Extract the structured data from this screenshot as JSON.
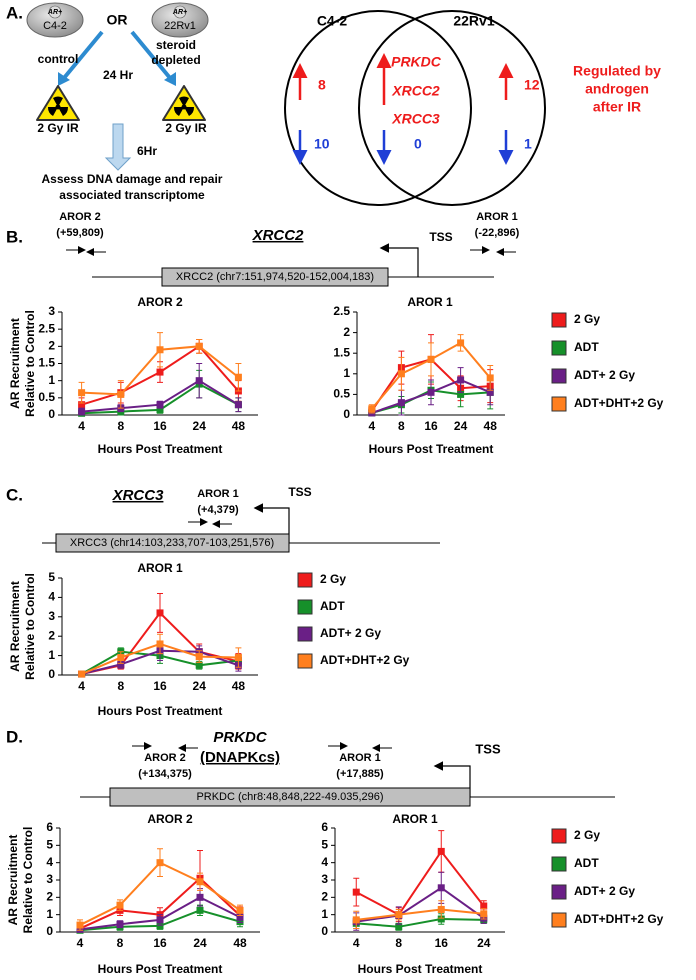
{
  "panel_labels": [
    "A.",
    "B.",
    "C.",
    "D."
  ],
  "panel_a": {
    "cell_lines": [
      {
        "badge": "AR+",
        "name": "C4-2"
      },
      {
        "badge": "AR+",
        "name": "22Rv1"
      }
    ],
    "or": "OR",
    "control": "control",
    "steroid_depleted": [
      "steroid",
      "depleted"
    ],
    "time1": "24 Hr",
    "treatments": [
      "2 Gy IR",
      "2 Gy IR"
    ],
    "time2": "6Hr",
    "assay": [
      "Assess DNA damage and repair",
      "associated transcriptome"
    ],
    "venn": {
      "sets": [
        "C4-2",
        "22Rv1"
      ],
      "c42_up": 8,
      "c42_down": 10,
      "shared_genes": [
        "PRKDC",
        "XRCC2",
        "XRCC3"
      ],
      "shared_down": 0,
      "rv1_up": 12,
      "rv1_down": 1,
      "note": [
        "Regulated by",
        "androgen",
        "after IR"
      ]
    }
  },
  "panel_b": {
    "gene": "XRCC2",
    "regions": [
      {
        "name": "AROR 2",
        "position": "(+59,809)"
      },
      {
        "name": "AROR 1",
        "position": "(-22,896)"
      }
    ],
    "tss": "TSS",
    "locus": "XRCC2 (chr7:151,974,520-152,004,183)"
  },
  "panel_c": {
    "gene": "XRCC3",
    "regions": [
      {
        "name": "AROR 1",
        "position": "(+4,379)"
      }
    ],
    "tss": "TSS",
    "locus": "XRCC3 (chr14:103,233,707-103,251,576)"
  },
  "panel_d": {
    "gene": "PRKDC",
    "alias": "(DNAPKcs)",
    "regions": [
      {
        "name": "AROR 2",
        "position": "(+134,375)"
      },
      {
        "name": "AROR 1",
        "position": "(+17,885)"
      }
    ],
    "tss": "TSS",
    "locus": "PRKDC (chr8:48,848,222-49.035,296)"
  },
  "chart_data": [
    {
      "type": "line",
      "title": "AROR 2",
      "x_label": "Hours Post Treatment",
      "y_label": [
        "AR Recruitment",
        "Relative to Control"
      ],
      "categories": [
        "4",
        "8",
        "16",
        "24",
        "48"
      ],
      "ylim": [
        0,
        3
      ],
      "yticks": [
        0,
        0.5,
        1,
        1.5,
        2,
        2.5,
        3
      ],
      "series": [
        {
          "color": "#ee1c1c",
          "values": [
            0.3,
            0.65,
            1.25,
            2.0,
            0.7
          ],
          "errors": [
            0.2,
            0.3,
            0.3,
            0.2,
            0.3
          ]
        },
        {
          "color": "#16902a",
          "values": [
            0.05,
            0.1,
            0.15,
            0.9,
            0.3
          ],
          "errors": [
            0.05,
            0.1,
            0.1,
            0.4,
            0.2
          ]
        },
        {
          "color": "#6a1f86",
          "values": [
            0.1,
            0.2,
            0.3,
            1.0,
            0.3
          ],
          "errors": [
            0.1,
            0.1,
            0.1,
            0.5,
            0.2
          ]
        },
        {
          "color": "#ff7f1e",
          "values": [
            0.65,
            0.6,
            1.9,
            2.0,
            1.1
          ],
          "errors": [
            0.3,
            0.4,
            0.5,
            0.2,
            0.4
          ]
        }
      ]
    },
    {
      "type": "line",
      "title": "AROR 1",
      "x_label": "Hours Post Treatment",
      "legend": "right",
      "categories": [
        "4",
        "8",
        "16",
        "24",
        "48"
      ],
      "ylim": [
        0,
        2.5
      ],
      "yticks": [
        0,
        0.5,
        1,
        1.5,
        2,
        2.5
      ],
      "series": [
        {
          "name": "2 Gy",
          "color": "#ee1c1c",
          "values": [
            0.1,
            1.15,
            1.35,
            0.65,
            0.7
          ],
          "errors": [
            0.1,
            0.4,
            0.6,
            0.3,
            0.4
          ]
        },
        {
          "name": "ADT",
          "color": "#16902a",
          "values": [
            0.05,
            0.25,
            0.6,
            0.5,
            0.55
          ],
          "errors": [
            0.05,
            0.2,
            0.2,
            0.3,
            0.4
          ]
        },
        {
          "name": "ADT+ 2 Gy",
          "color": "#6a1f86",
          "values": [
            0.05,
            0.3,
            0.55,
            0.85,
            0.55
          ],
          "errors": [
            0.05,
            0.3,
            0.3,
            0.3,
            0.3
          ]
        },
        {
          "name": "ADT+DHT+2 Gy",
          "color": "#ff7f1e",
          "values": [
            0.15,
            1.0,
            1.35,
            1.75,
            0.9
          ],
          "errors": [
            0.1,
            0.4,
            0.4,
            0.2,
            0.3
          ]
        }
      ]
    },
    {
      "type": "line",
      "title": "AROR 1",
      "x_label": "Hours Post Treatment",
      "y_label": [
        "AR Recruitment",
        "Relative to Control"
      ],
      "legend": "right",
      "categories": [
        "4",
        "8",
        "16",
        "24",
        "48"
      ],
      "ylim": [
        0,
        5
      ],
      "yticks": [
        0,
        1,
        2,
        3,
        4,
        5
      ],
      "series": [
        {
          "name": "2 Gy",
          "color": "#ee1c1c",
          "values": [
            0.05,
            0.5,
            3.2,
            1.2,
            0.7
          ],
          "errors": [
            0.05,
            0.2,
            1.0,
            0.4,
            0.4
          ]
        },
        {
          "name": "ADT",
          "color": "#16902a",
          "values": [
            0.05,
            1.2,
            1.0,
            0.5,
            0.75
          ],
          "errors": [
            0.05,
            0.2,
            0.4,
            0.2,
            0.3
          ]
        },
        {
          "name": "ADT+ 2 Gy",
          "color": "#6a1f86",
          "values": [
            0.05,
            0.55,
            1.25,
            1.2,
            0.5
          ],
          "errors": [
            0.05,
            0.2,
            0.5,
            0.3,
            0.3
          ]
        },
        {
          "name": "ADT+DHT+2 Gy",
          "color": "#ff7f1e",
          "values": [
            0.05,
            0.9,
            1.6,
            0.95,
            0.9
          ],
          "errors": [
            0.05,
            0.3,
            0.5,
            0.3,
            0.5
          ]
        }
      ]
    },
    {
      "type": "line",
      "title": "AROR 2",
      "x_label": "Hours Post Treatment",
      "y_label": [
        "AR Recruitment",
        "Relative to Control"
      ],
      "categories": [
        "4",
        "8",
        "16",
        "24",
        "48"
      ],
      "ylim": [
        0,
        6
      ],
      "yticks": [
        0,
        1,
        2,
        3,
        4,
        5,
        6
      ],
      "series": [
        {
          "color": "#ee1c1c",
          "values": [
            0.2,
            1.25,
            1.0,
            3.1,
            0.95
          ],
          "errors": [
            0.2,
            0.3,
            0.4,
            1.6,
            0.5
          ]
        },
        {
          "color": "#16902a",
          "values": [
            0.1,
            0.3,
            0.35,
            1.25,
            0.6
          ],
          "errors": [
            0.1,
            0.2,
            0.2,
            0.3,
            0.3
          ]
        },
        {
          "color": "#6a1f86",
          "values": [
            0.15,
            0.45,
            0.7,
            2.0,
            0.85
          ],
          "errors": [
            0.1,
            0.2,
            0.3,
            0.5,
            0.3
          ]
        },
        {
          "color": "#ff7f1e",
          "values": [
            0.4,
            1.55,
            4.0,
            2.9,
            1.25
          ],
          "errors": [
            0.3,
            0.3,
            0.8,
            0.5,
            0.3
          ]
        }
      ]
    },
    {
      "type": "line",
      "title": "AROR 1",
      "x_label": "Hours Post Treatment",
      "legend": "right",
      "categories": [
        "4",
        "8",
        "16",
        "24"
      ],
      "ylim": [
        0,
        6
      ],
      "yticks": [
        0,
        1,
        2,
        3,
        4,
        5,
        6
      ],
      "series": [
        {
          "name": "2 Gy",
          "color": "#ee1c1c",
          "values": [
            2.3,
            1.0,
            4.65,
            1.5
          ],
          "errors": [
            0.8,
            0.4,
            1.2,
            0.3
          ]
        },
        {
          "name": "ADT",
          "color": "#16902a",
          "values": [
            0.5,
            0.3,
            0.75,
            0.7
          ],
          "errors": [
            0.3,
            0.2,
            0.3,
            0.2
          ]
        },
        {
          "name": "ADT+ 2 Gy",
          "color": "#6a1f86",
          "values": [
            0.6,
            0.95,
            2.55,
            0.8
          ],
          "errors": [
            0.5,
            0.5,
            0.9,
            0.3
          ]
        },
        {
          "name": "ADT+DHT+2 Gy",
          "color": "#ff7f1e",
          "values": [
            0.7,
            1.0,
            1.3,
            1.05
          ],
          "errors": [
            0.5,
            0.3,
            0.5,
            0.3
          ]
        }
      ]
    }
  ]
}
